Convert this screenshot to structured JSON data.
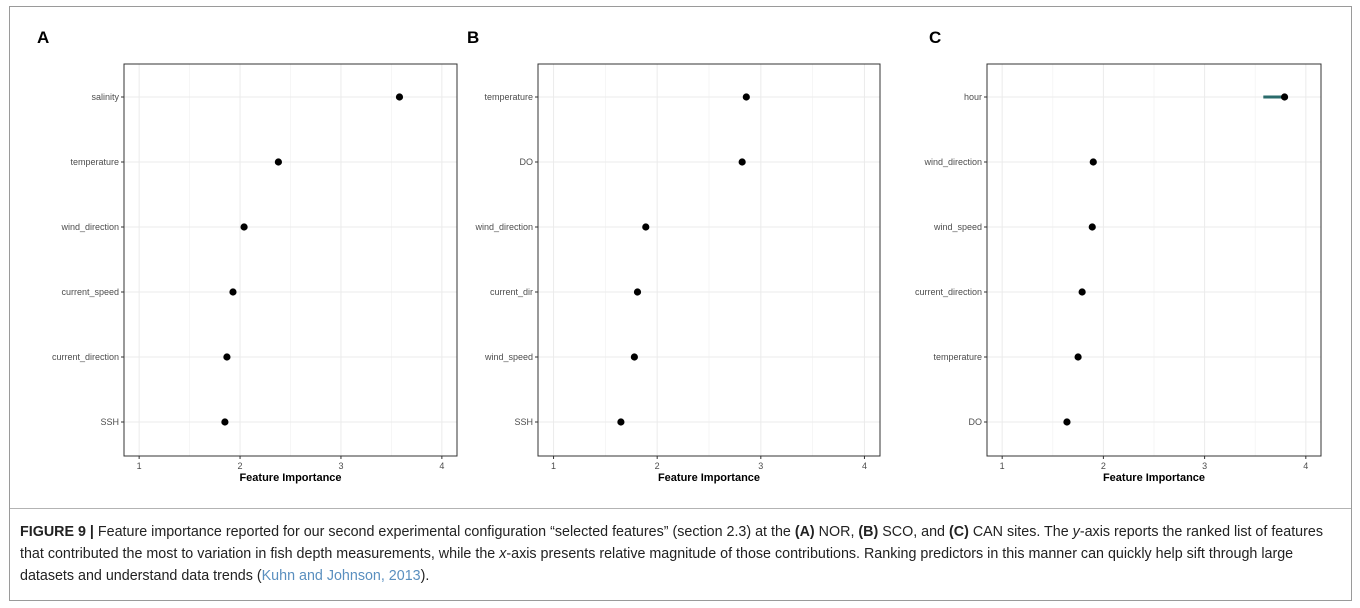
{
  "chart_data": [
    {
      "type": "scatter",
      "panel_label": "A",
      "xlabel": "Feature Importance",
      "ylabel": "",
      "xlim": [
        0.85,
        4.15
      ],
      "xticks": [
        "1",
        "2",
        "3",
        "4"
      ],
      "categories": [
        "salinity",
        "temperature",
        "wind_direction",
        "current_speed",
        "current_direction",
        "SSH"
      ],
      "values": [
        3.58,
        2.38,
        2.04,
        1.93,
        1.87,
        1.85
      ],
      "grid": true
    },
    {
      "type": "scatter",
      "panel_label": "B",
      "xlabel": "Feature Importance",
      "ylabel": "",
      "xlim": [
        0.85,
        4.15
      ],
      "xticks": [
        "1",
        "2",
        "3",
        "4"
      ],
      "categories": [
        "temperature",
        "DO",
        "wind_direction",
        "current_dir",
        "wind_speed",
        "SSH"
      ],
      "values": [
        2.86,
        2.82,
        1.89,
        1.81,
        1.78,
        1.65
      ],
      "grid": true
    },
    {
      "type": "scatter",
      "panel_label": "C",
      "xlabel": "Feature Importance",
      "ylabel": "",
      "xlim": [
        0.85,
        4.15
      ],
      "xticks": [
        "1",
        "2",
        "3",
        "4"
      ],
      "categories": [
        "hour",
        "wind_direction",
        "wind_speed",
        "current_direction",
        "temperature",
        "DO"
      ],
      "values": [
        3.79,
        1.9,
        1.89,
        1.79,
        1.75,
        1.64
      ],
      "interval": {
        "category": "hour",
        "range": [
          3.58,
          3.79
        ],
        "color": "#2a6b6b"
      },
      "grid": true
    }
  ],
  "caption": {
    "figure_label": "FIGURE 9 |",
    "line1_a": " Feature importance reported for our second experimental configuration “selected features” (section 2.3) at the ",
    "tagA": "(A)",
    "siteA": " NOR, ",
    "tagB": "(B)",
    "siteB": " SCO, and ",
    "tagC": "(C)",
    "siteC": " CAN sites. The ",
    "y": "y",
    "line2": "-axis reports the ranked list of features that contributed the most to variation in fish depth measurements, while the ",
    "x": "x",
    "line3": "-axis presents relative magnitude of those contributions. Ranking predictors in this manner can quickly help sift through large datasets and understand data trends (",
    "citation": "Kuhn and Johnson, 2013",
    "end": ")."
  },
  "colors": {
    "point": "#000000",
    "grid": "#ebebeb",
    "panel_border": "#333333",
    "axis_text": "#4d4d4d"
  }
}
